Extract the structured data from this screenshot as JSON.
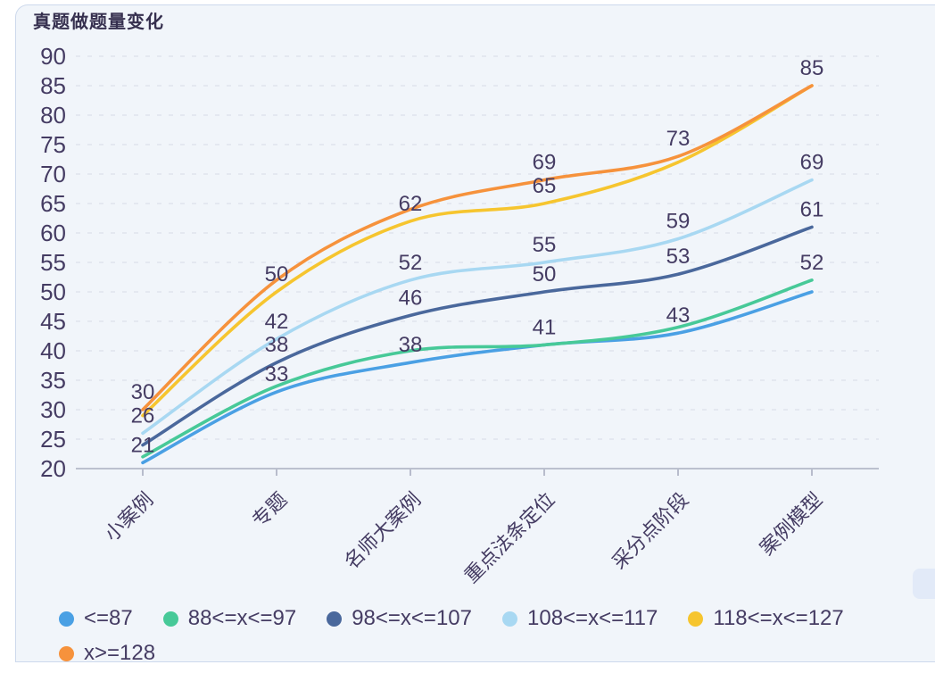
{
  "page": {
    "title": "真题做题量变化"
  },
  "colors": {
    "page_bg": "#ffffff",
    "panel_bg": "#f1f5fa",
    "panel_border": "#cdd9ec",
    "text": "#453c63",
    "grid_line": "#e0e3ed",
    "axis_line": "#a9aec0",
    "artifact": "#e2eaf8"
  },
  "chart_data": {
    "type": "line",
    "title": "真题做题量变化",
    "smooth": true,
    "grid": "horizontal dashed gridlines",
    "legend_position": "bottom-left, two rows",
    "categories": [
      "小案例",
      "专题",
      "名师大案例",
      "重点法条定位",
      "采分点阶段",
      "案例模型"
    ],
    "xlabel": "",
    "ylabel": "",
    "ylim": [
      20,
      90
    ],
    "ytick_step": 5,
    "series": [
      {
        "name": "<=87",
        "color": "#4aa0e4",
        "values": [
          21,
          33,
          38,
          41,
          43,
          50
        ],
        "point_labels": [
          21,
          33,
          38,
          41,
          43,
          null
        ]
      },
      {
        "name": "88<=x<=97",
        "color": "#47c998",
        "values": [
          22,
          34,
          40,
          41,
          44,
          52
        ],
        "point_labels": [
          null,
          null,
          null,
          null,
          null,
          52
        ]
      },
      {
        "name": "98<=x<=107",
        "color": "#4a689c",
        "values": [
          24,
          38,
          46,
          50,
          53,
          61
        ],
        "point_labels": [
          null,
          38,
          46,
          50,
          53,
          61
        ]
      },
      {
        "name": "108<=x<=117",
        "color": "#a8d8f2",
        "values": [
          26,
          42,
          52,
          55,
          59,
          69
        ],
        "point_labels": [
          26,
          42,
          52,
          55,
          59,
          69
        ]
      },
      {
        "name": "118<=x<=127",
        "color": "#f6c52f",
        "values": [
          29,
          50,
          62,
          65,
          72,
          85
        ],
        "point_labels": [
          null,
          50,
          62,
          65,
          null,
          null
        ]
      },
      {
        "name": "x>=128",
        "color": "#f6923c",
        "values": [
          30,
          52,
          64,
          69,
          73,
          85
        ],
        "point_labels": [
          30,
          null,
          null,
          69,
          73,
          85
        ]
      }
    ]
  }
}
